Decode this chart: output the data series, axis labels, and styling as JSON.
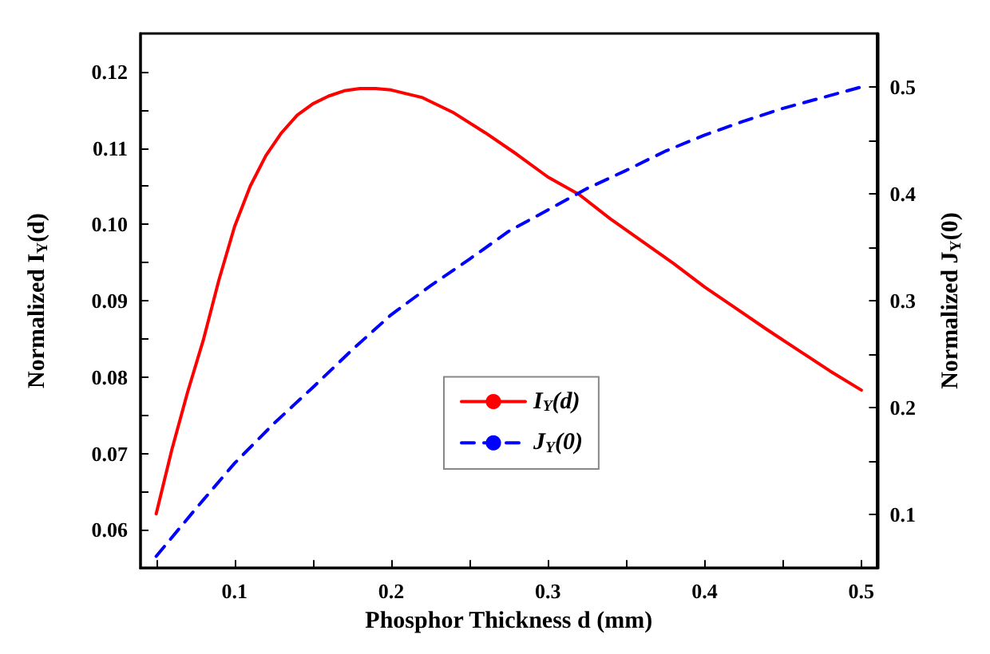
{
  "chart_data": {
    "type": "line",
    "xlabel": "Phosphor Thickness d (mm)",
    "ylabel": "Normalized I$_{Y}$(d)",
    "y2label": "Normalized J$_{Y}$(0)",
    "xlim": [
      0.04,
      0.51
    ],
    "xticks": [
      {
        "value": 0.05,
        "label": null
      },
      0.1,
      {
        "value": 0.15,
        "label": null
      },
      0.2,
      {
        "value": 0.25,
        "label": null
      },
      0.3,
      {
        "value": 0.35,
        "label": null
      },
      0.4,
      {
        "value": 0.45,
        "label": null
      },
      0.5
    ],
    "ylim": [
      0.055,
      0.125
    ],
    "yticks": [
      0.06,
      {
        "value": 0.065,
        "label": null
      },
      0.07,
      {
        "value": 0.075,
        "label": null
      },
      0.08,
      {
        "value": 0.085,
        "label": null
      },
      0.09,
      {
        "value": 0.095,
        "label": null
      },
      {
        "value": 0.1,
        "label": "0.10"
      },
      {
        "value": 0.105,
        "label": null
      },
      0.11,
      {
        "value": 0.115,
        "label": null
      },
      0.12
    ],
    "y2lim": [
      0.05,
      0.55
    ],
    "y2ticks": [
      0.1,
      {
        "value": 0.15,
        "label": null
      },
      0.2,
      {
        "value": 0.25,
        "label": null
      },
      0.3,
      {
        "value": 0.35,
        "label": null
      },
      0.4,
      {
        "value": 0.45,
        "label": null
      },
      0.5
    ],
    "grid": false,
    "legend": "bottom",
    "marker": "none",
    "series": [
      {
        "name": "I$_{Y}$(d)",
        "color": "#ff0000",
        "line_style": "solid",
        "x": [
          0.05,
          0.06,
          0.07,
          0.08,
          0.09,
          0.1,
          0.11,
          0.12,
          0.13,
          0.14,
          0.15,
          0.16,
          0.17,
          0.18,
          0.19,
          0.2,
          0.22,
          0.24,
          0.26,
          0.28,
          0.3,
          0.32,
          0.34,
          0.36,
          0.38,
          0.4,
          0.42,
          0.44,
          0.46,
          0.48,
          0.5
        ],
        "values": [
          0.0621,
          0.0705,
          0.078,
          0.0848,
          0.0927,
          0.0997,
          0.105,
          0.109,
          0.112,
          0.1143,
          0.1158,
          0.1168,
          0.1175,
          0.1178,
          0.1178,
          0.1176,
          0.1166,
          0.1146,
          0.112,
          0.1092,
          0.1062,
          0.1039,
          0.1007,
          0.0978,
          0.0949,
          0.0918,
          0.089,
          0.0862,
          0.0835,
          0.0808,
          0.0783
        ]
      },
      {
        "name": "J$_{Y}$(0)",
        "color": "#0000ff",
        "line_style": "dashed",
        "axis": "y2",
        "x": [
          0.05,
          0.075,
          0.1,
          0.125,
          0.15,
          0.175,
          0.2,
          0.225,
          0.25,
          0.275,
          0.3,
          0.325,
          0.35,
          0.375,
          0.4,
          0.425,
          0.45,
          0.475,
          0.5
        ],
        "values": [
          0.061,
          0.105,
          0.148,
          0.185,
          0.219,
          0.254,
          0.287,
          0.314,
          0.339,
          0.365,
          0.385,
          0.405,
          0.422,
          0.44,
          0.455,
          0.468,
          0.48,
          0.49,
          0.5
        ]
      }
    ]
  }
}
